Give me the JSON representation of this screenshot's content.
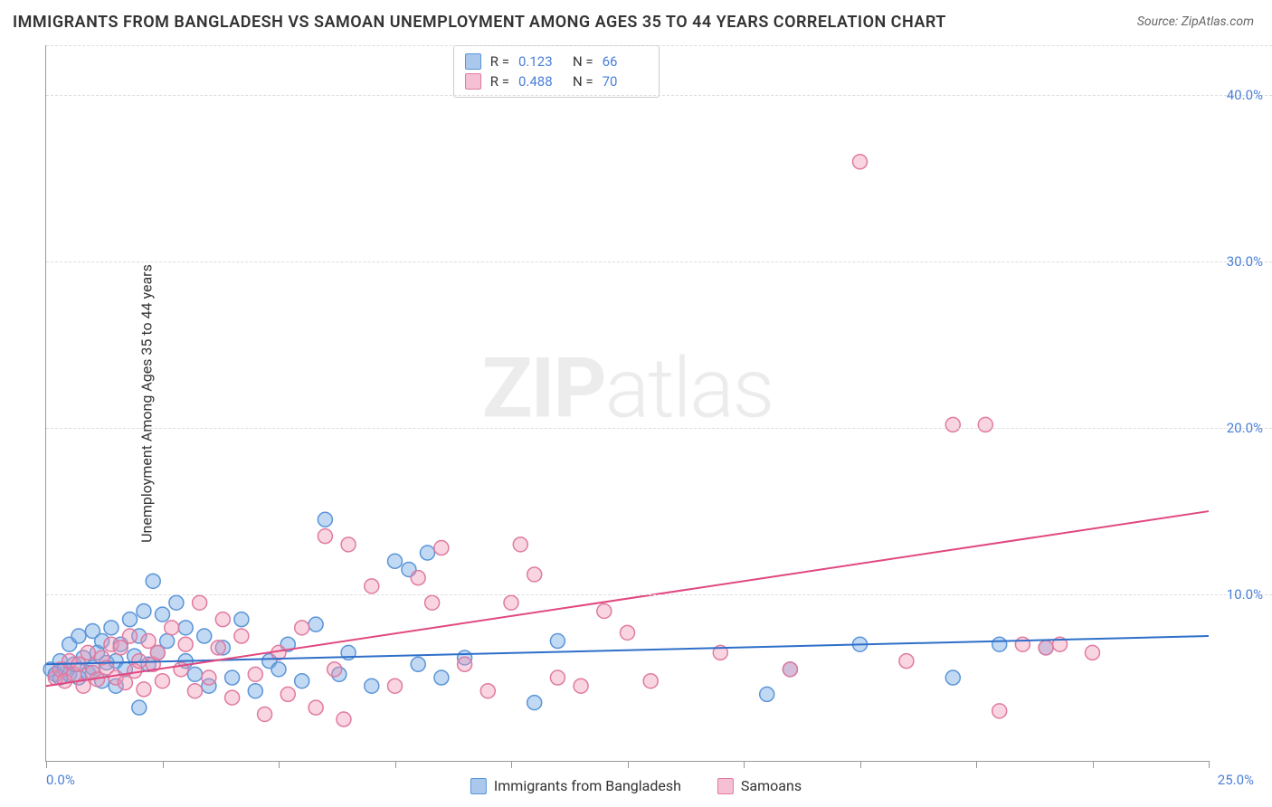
{
  "title": "IMMIGRANTS FROM BANGLADESH VS SAMOAN UNEMPLOYMENT AMONG AGES 35 TO 44 YEARS CORRELATION CHART",
  "source": "Source: ZipAtlas.com",
  "y_axis_label": "Unemployment Among Ages 35 to 44 years",
  "watermark_bold": "ZIP",
  "watermark_light": "atlas",
  "chart": {
    "type": "scatter",
    "xlim": [
      0,
      25
    ],
    "ylim": [
      0,
      43
    ],
    "x_ticks": [
      0,
      2.5,
      5,
      7.5,
      10,
      12.5,
      15,
      17.5,
      20,
      22.5,
      25
    ],
    "x_tick_labels": {
      "0": "0.0%",
      "25": "25.0%"
    },
    "y_ticks": [
      10,
      20,
      30,
      40
    ],
    "y_tick_labels": {
      "10": "10.0%",
      "20": "20.0%",
      "30": "30.0%",
      "40": "40.0%"
    },
    "background_color": "#ffffff",
    "grid_color": "#dddddd",
    "axis_color": "#999999",
    "tick_label_color": "#4a7fd8",
    "marker_radius": 8,
    "marker_stroke_width": 1.5,
    "line_width": 2,
    "series": [
      {
        "name": "Immigrants from Bangladesh",
        "fill_color": "rgba(120,170,230,0.45)",
        "stroke_color": "#5a95d8",
        "swatch_fill": "#a9c8ec",
        "swatch_stroke": "#5a95d8",
        "line_color": "#2e6fc9",
        "R": "0.123",
        "N": "66",
        "trend": {
          "x1": 0,
          "y1": 5.8,
          "x2": 25,
          "y2": 7.5
        },
        "points": [
          [
            0.1,
            5.5
          ],
          [
            0.2,
            5.2
          ],
          [
            0.3,
            6.0
          ],
          [
            0.3,
            5.0
          ],
          [
            0.4,
            5.5
          ],
          [
            0.5,
            7.0
          ],
          [
            0.5,
            5.2
          ],
          [
            0.6,
            5.8
          ],
          [
            0.7,
            7.5
          ],
          [
            0.7,
            5.0
          ],
          [
            0.8,
            6.2
          ],
          [
            0.9,
            5.3
          ],
          [
            1.0,
            7.8
          ],
          [
            1.0,
            5.6
          ],
          [
            1.1,
            6.5
          ],
          [
            1.2,
            7.2
          ],
          [
            1.2,
            4.8
          ],
          [
            1.3,
            5.9
          ],
          [
            1.4,
            8.0
          ],
          [
            1.5,
            6.0
          ],
          [
            1.5,
            4.5
          ],
          [
            1.6,
            7.0
          ],
          [
            1.7,
            5.5
          ],
          [
            1.8,
            8.5
          ],
          [
            1.9,
            6.3
          ],
          [
            2.0,
            3.2
          ],
          [
            2.0,
            7.5
          ],
          [
            2.1,
            9.0
          ],
          [
            2.2,
            5.8
          ],
          [
            2.3,
            10.8
          ],
          [
            2.4,
            6.5
          ],
          [
            2.5,
            8.8
          ],
          [
            2.6,
            7.2
          ],
          [
            2.8,
            9.5
          ],
          [
            3.0,
            6.0
          ],
          [
            3.0,
            8.0
          ],
          [
            3.2,
            5.2
          ],
          [
            3.4,
            7.5
          ],
          [
            3.5,
            4.5
          ],
          [
            3.8,
            6.8
          ],
          [
            4.0,
            5.0
          ],
          [
            4.2,
            8.5
          ],
          [
            4.5,
            4.2
          ],
          [
            4.8,
            6.0
          ],
          [
            5.0,
            5.5
          ],
          [
            5.2,
            7.0
          ],
          [
            5.5,
            4.8
          ],
          [
            5.8,
            8.2
          ],
          [
            6.0,
            14.5
          ],
          [
            6.3,
            5.2
          ],
          [
            6.5,
            6.5
          ],
          [
            7.0,
            4.5
          ],
          [
            7.5,
            12.0
          ],
          [
            7.8,
            11.5
          ],
          [
            8.0,
            5.8
          ],
          [
            8.2,
            12.5
          ],
          [
            8.5,
            5.0
          ],
          [
            9.0,
            6.2
          ],
          [
            10.5,
            3.5
          ],
          [
            11.0,
            7.2
          ],
          [
            15.5,
            4.0
          ],
          [
            16.0,
            5.5
          ],
          [
            17.5,
            7.0
          ],
          [
            19.5,
            5.0
          ],
          [
            20.5,
            7.0
          ],
          [
            21.5,
            6.8
          ]
        ]
      },
      {
        "name": "Samoans",
        "fill_color": "rgba(240,150,180,0.4)",
        "stroke_color": "#e07aa0",
        "swatch_fill": "#f5c0d4",
        "swatch_stroke": "#e07aa0",
        "line_color": "#e04880",
        "R": "0.488",
        "N": "70",
        "trend": {
          "x1": 0,
          "y1": 4.5,
          "x2": 25,
          "y2": 15.0
        },
        "points": [
          [
            0.2,
            5.0
          ],
          [
            0.3,
            5.5
          ],
          [
            0.4,
            4.8
          ],
          [
            0.5,
            6.0
          ],
          [
            0.6,
            5.2
          ],
          [
            0.7,
            5.8
          ],
          [
            0.8,
            4.5
          ],
          [
            0.9,
            6.5
          ],
          [
            1.0,
            5.3
          ],
          [
            1.1,
            4.9
          ],
          [
            1.2,
            6.2
          ],
          [
            1.3,
            5.6
          ],
          [
            1.4,
            7.0
          ],
          [
            1.5,
            5.0
          ],
          [
            1.6,
            6.8
          ],
          [
            1.7,
            4.7
          ],
          [
            1.8,
            7.5
          ],
          [
            1.9,
            5.4
          ],
          [
            2.0,
            6.0
          ],
          [
            2.1,
            4.3
          ],
          [
            2.2,
            7.2
          ],
          [
            2.3,
            5.8
          ],
          [
            2.4,
            6.5
          ],
          [
            2.5,
            4.8
          ],
          [
            2.7,
            8.0
          ],
          [
            2.9,
            5.5
          ],
          [
            3.0,
            7.0
          ],
          [
            3.2,
            4.2
          ],
          [
            3.3,
            9.5
          ],
          [
            3.5,
            5.0
          ],
          [
            3.7,
            6.8
          ],
          [
            3.8,
            8.5
          ],
          [
            4.0,
            3.8
          ],
          [
            4.2,
            7.5
          ],
          [
            4.5,
            5.2
          ],
          [
            4.7,
            2.8
          ],
          [
            5.0,
            6.5
          ],
          [
            5.2,
            4.0
          ],
          [
            5.5,
            8.0
          ],
          [
            5.8,
            3.2
          ],
          [
            6.0,
            13.5
          ],
          [
            6.2,
            5.5
          ],
          [
            6.4,
            2.5
          ],
          [
            6.5,
            13.0
          ],
          [
            7.0,
            10.5
          ],
          [
            7.5,
            4.5
          ],
          [
            8.0,
            11.0
          ],
          [
            8.3,
            9.5
          ],
          [
            8.5,
            12.8
          ],
          [
            9.0,
            5.8
          ],
          [
            9.5,
            4.2
          ],
          [
            10.0,
            9.5
          ],
          [
            10.2,
            13.0
          ],
          [
            10.5,
            11.2
          ],
          [
            11.0,
            5.0
          ],
          [
            11.5,
            4.5
          ],
          [
            12.0,
            9.0
          ],
          [
            12.5,
            7.7
          ],
          [
            13.0,
            4.8
          ],
          [
            14.5,
            6.5
          ],
          [
            16.0,
            5.5
          ],
          [
            17.5,
            36.0
          ],
          [
            18.5,
            6.0
          ],
          [
            19.5,
            20.2
          ],
          [
            20.2,
            20.2
          ],
          [
            20.5,
            3.0
          ],
          [
            21.0,
            7.0
          ],
          [
            21.5,
            6.8
          ],
          [
            21.8,
            7.0
          ],
          [
            22.5,
            6.5
          ]
        ]
      }
    ]
  },
  "stats_labels": {
    "R": "R  =",
    "N": "N  ="
  },
  "legend_labels": [
    "Immigrants from Bangladesh",
    "Samoans"
  ]
}
